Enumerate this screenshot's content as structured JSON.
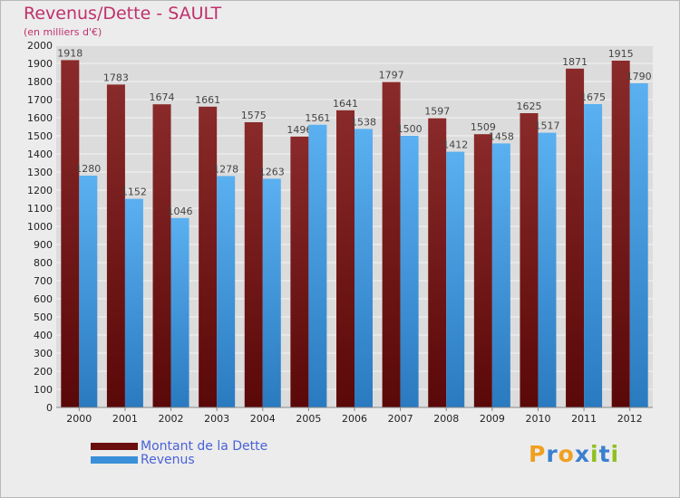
{
  "header": {
    "title": "Revenus/Dette - SAULT",
    "subtitle": "(en milliers d'€)"
  },
  "brand": {
    "letters": [
      "P",
      "r",
      "o",
      "x",
      "i",
      "t",
      "i"
    ],
    "colors": [
      "#f0a020",
      "#3a80d0",
      "#f0a020",
      "#3a80d0",
      "#90c020",
      "#3a80d0",
      "#90c020"
    ]
  },
  "chart_data": {
    "type": "bar",
    "categories": [
      "2000",
      "2001",
      "2002",
      "2003",
      "2004",
      "2005",
      "2006",
      "2007",
      "2008",
      "2009",
      "2010",
      "2011",
      "2012"
    ],
    "series": [
      {
        "name": "Montant de la Dette",
        "color": "#7a1a1a",
        "values": [
          1918,
          1783,
          1674,
          1661,
          1575,
          1496,
          1641,
          1797,
          1597,
          1509,
          1625,
          1871,
          1915
        ]
      },
      {
        "name": "Revenus",
        "color": "#3a90d8",
        "values": [
          1280,
          1152,
          1046,
          1278,
          1263,
          1561,
          1538,
          1500,
          1412,
          1458,
          1517,
          1675,
          1790
        ]
      }
    ],
    "ylim": [
      0,
      2000
    ],
    "ytick_step": 100,
    "grid": true,
    "legend_position": "bottom-left"
  }
}
